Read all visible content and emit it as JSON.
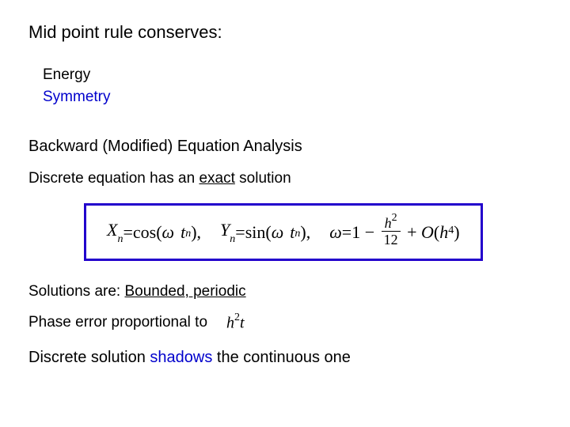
{
  "title": "Mid point rule conserves:",
  "conserves": {
    "energy": {
      "label": "Energy",
      "color": "#000000"
    },
    "symmetry": {
      "label": "Symmetry",
      "color": "#0000cc"
    }
  },
  "analysis_heading": "Backward (Modified) Equation Analysis",
  "discrete_has": {
    "prefix": "Discrete equation has an ",
    "emph": "exact",
    "suffix": " solution"
  },
  "equation_box": {
    "border_color": "#2200cc",
    "X_lhs": "X",
    "X_sub": "n",
    "eq_sign": " = ",
    "cos": "cos",
    "sin": "sin",
    "omega": "ω",
    "t": "t",
    "n": "n",
    "Y_lhs": "Y",
    "Y_sub": "n",
    "omega_rhs_one": "1",
    "frac_num_h": "h",
    "frac_num_exp": "2",
    "frac_den": "12",
    "O": "O",
    "h": "h",
    "exp4": "4",
    "comma": ","
  },
  "solutions_line": {
    "prefix": "Solutions are: ",
    "emph": "Bounded, periodic"
  },
  "phase_error": {
    "text": "Phase error proportional to",
    "math_h": "h",
    "math_exp": "2",
    "math_t": "t"
  },
  "shadow_line": {
    "pre": "Discrete solution ",
    "word": "shadows",
    "post": " the continuous one",
    "word_color": "#0000cc"
  },
  "colors": {
    "text": "#000000",
    "accent_blue": "#0000cc",
    "box_border": "#2200cc",
    "background": "#ffffff"
  },
  "typography": {
    "body_font": "Arial",
    "math_font": "Times New Roman",
    "title_size_pt": 17,
    "body_size_pt": 14
  }
}
